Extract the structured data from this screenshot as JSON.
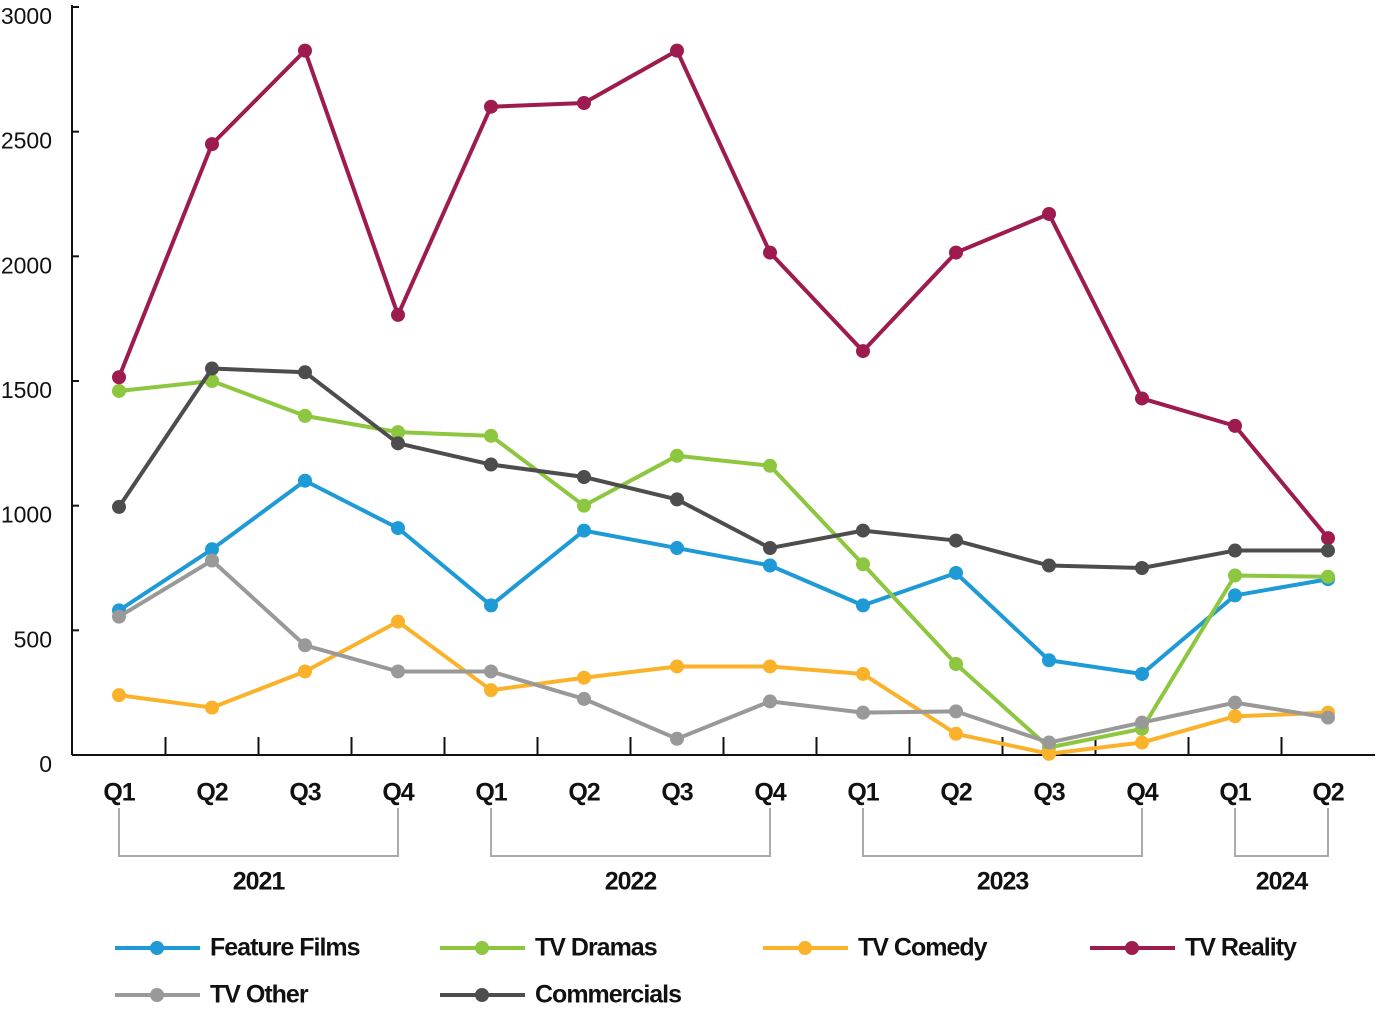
{
  "chart_data": {
    "type": "line",
    "categories": [
      "Q1",
      "Q2",
      "Q3",
      "Q4",
      "Q1",
      "Q2",
      "Q3",
      "Q4",
      "Q1",
      "Q2",
      "Q3",
      "Q4",
      "Q1",
      "Q2"
    ],
    "groups": [
      {
        "label": "2021",
        "count": 4
      },
      {
        "label": "2022",
        "count": 4
      },
      {
        "label": "2023",
        "count": 4
      },
      {
        "label": "2024",
        "count": 2
      }
    ],
    "ylim": [
      0,
      3000
    ],
    "yticks": [
      0,
      500,
      1000,
      1500,
      2000,
      2500,
      3000
    ],
    "series": [
      {
        "name": "Feature Films",
        "color": "#1e9ad6",
        "values": [
          580,
          825,
          1100,
          910,
          600,
          900,
          830,
          760,
          600,
          730,
          380,
          325,
          640,
          705
        ]
      },
      {
        "name": "TV Dramas",
        "color": "#8dc63f",
        "values": [
          1460,
          1500,
          1360,
          1295,
          1280,
          1000,
          1200,
          1160,
          765,
          365,
          30,
          105,
          720,
          715
        ]
      },
      {
        "name": "TV Comedy",
        "color": "#fbb22b",
        "values": [
          240,
          190,
          335,
          535,
          260,
          310,
          355,
          355,
          325,
          85,
          5,
          50,
          155,
          170
        ]
      },
      {
        "name": "TV Reality",
        "color": "#9e1b4f",
        "values": [
          1515,
          2450,
          2825,
          1765,
          2600,
          2615,
          2825,
          2015,
          1620,
          2015,
          2170,
          1430,
          1320,
          870
        ]
      },
      {
        "name": "TV Other",
        "color": "#999999",
        "values": [
          555,
          780,
          440,
          335,
          335,
          225,
          65,
          215,
          170,
          175,
          50,
          130,
          210,
          150
        ]
      },
      {
        "name": "Commercials",
        "color": "#4d4d4d",
        "values": [
          995,
          1550,
          1535,
          1250,
          1165,
          1115,
          1025,
          830,
          900,
          860,
          760,
          750,
          820,
          820
        ]
      }
    ]
  }
}
